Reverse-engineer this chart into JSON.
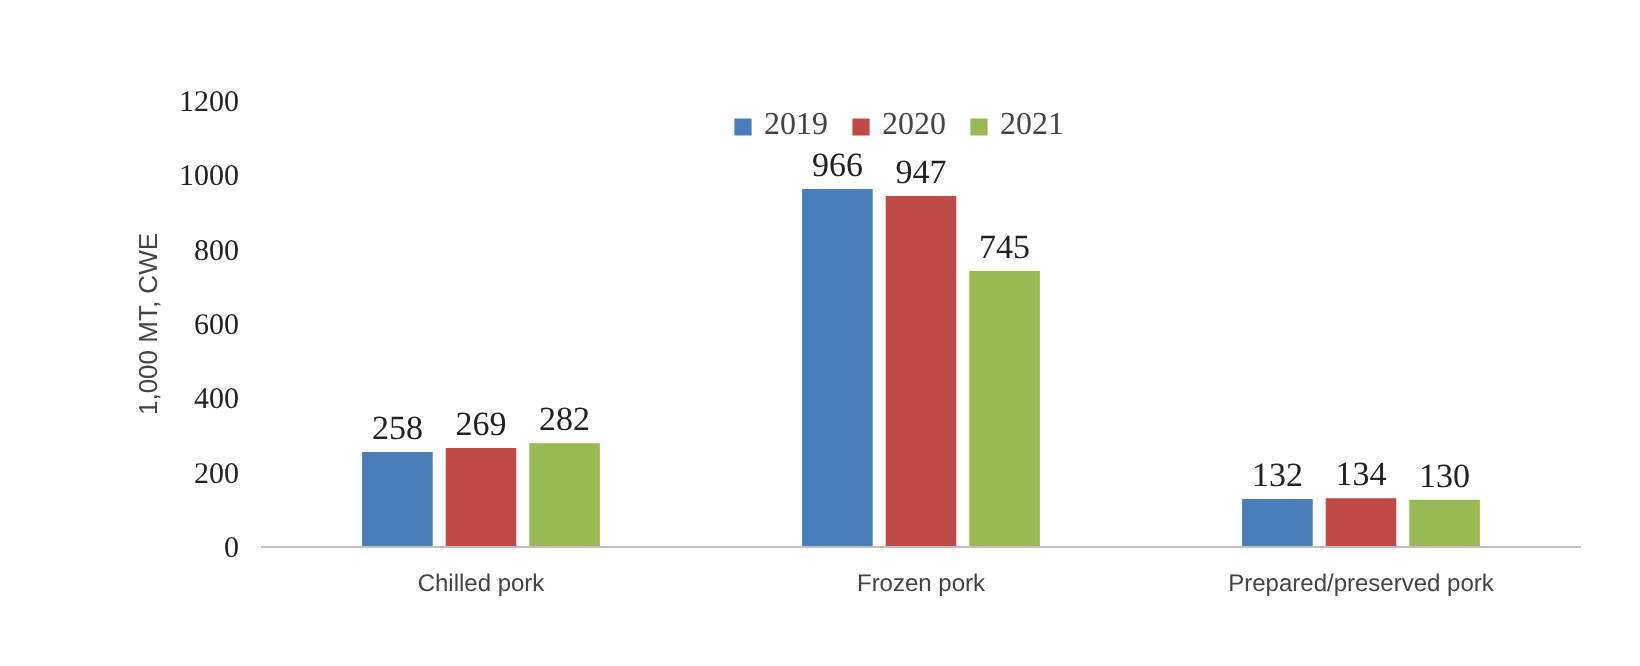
{
  "chart_data": {
    "type": "bar",
    "ylabel": "1,000 MT, CWE",
    "categories": [
      "Chilled pork",
      "Frozen pork",
      "Prepared/preserved pork"
    ],
    "series": [
      {
        "name": "2019",
        "color": "#4a7ebb",
        "values": [
          258,
          966,
          132
        ]
      },
      {
        "name": "2020",
        "color": "#be4b48",
        "values": [
          269,
          947,
          134
        ]
      },
      {
        "name": "2021",
        "color": "#98b954",
        "values": [
          282,
          745,
          130
        ]
      }
    ],
    "ylim": [
      0,
      1200
    ],
    "yticks": [
      0,
      200,
      400,
      600,
      800,
      1000,
      1200
    ],
    "data_labels": true,
    "legend": "top",
    "grid": false
  }
}
